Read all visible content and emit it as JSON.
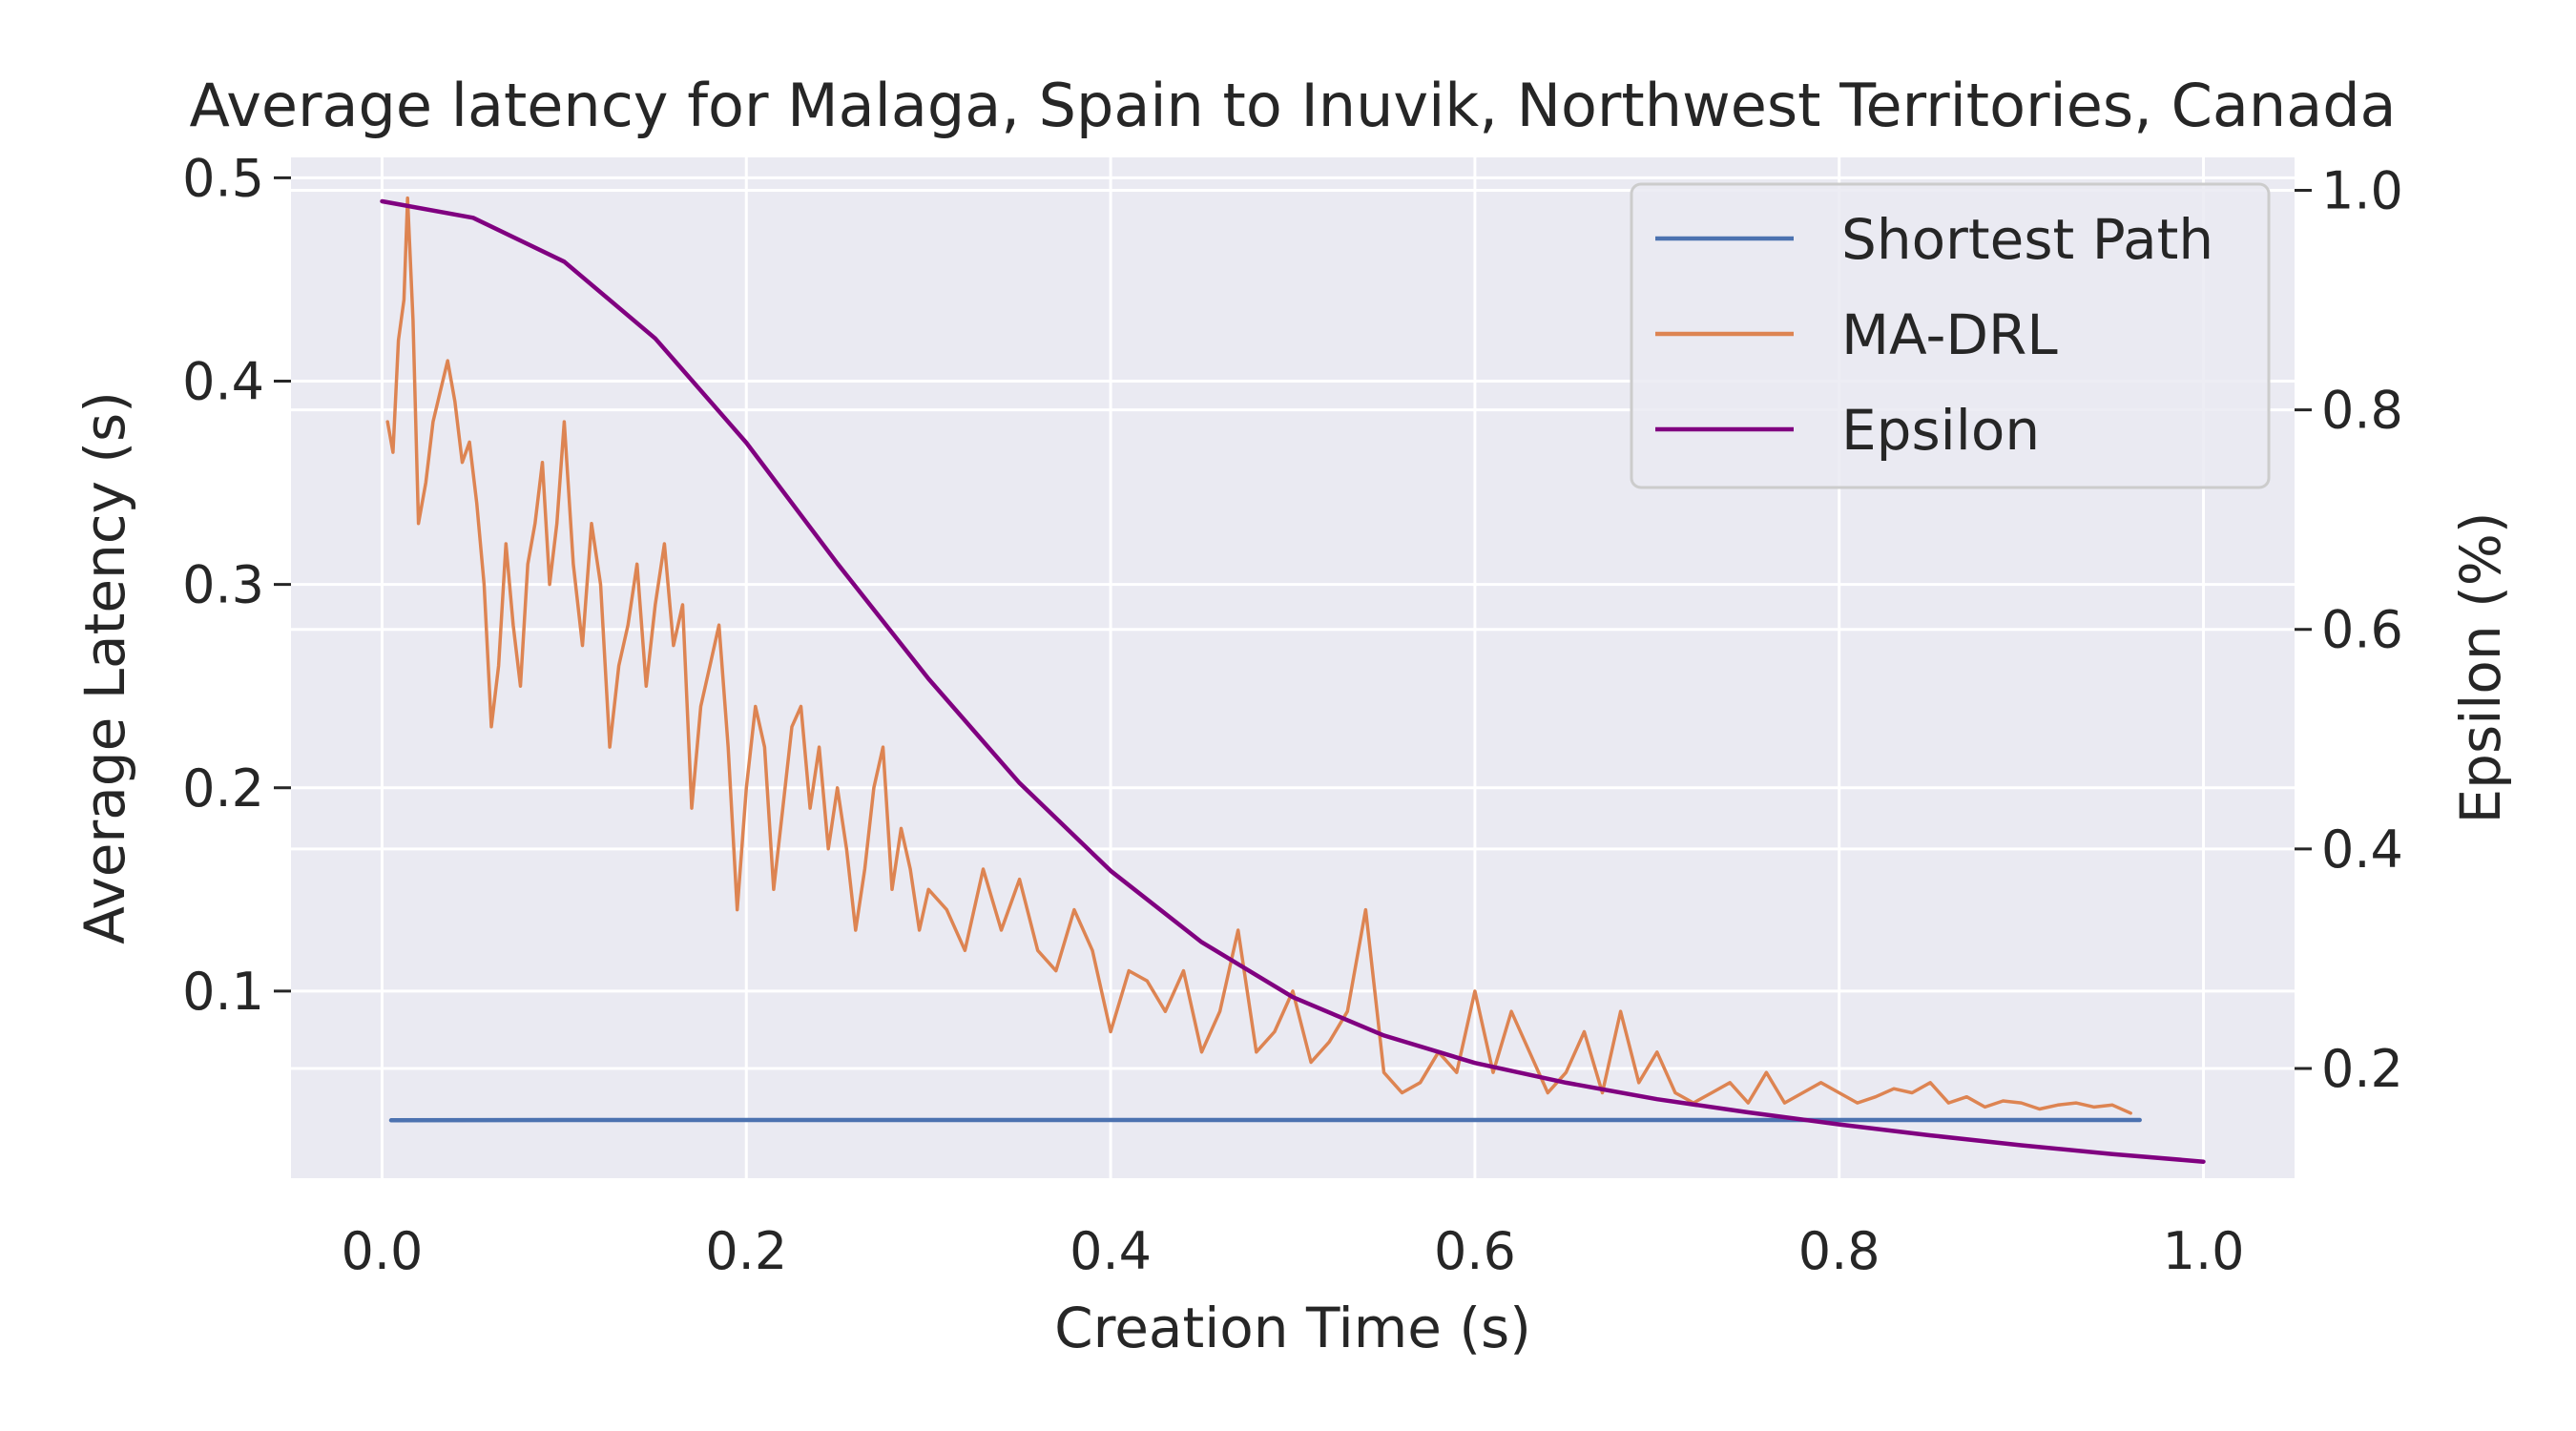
{
  "chart_data": {
    "type": "line",
    "title": "Average latency for Malaga, Spain to Inuvik, Northwest Territories, Canada",
    "xlabel": "Creation Time (s)",
    "ylabel": "Average Latency (s)",
    "y2label": "Epsilon (%)",
    "xlim": [
      -0.05,
      1.05
    ],
    "ylim": [
      0.008,
      0.51
    ],
    "y2lim": [
      0.1,
      1.03
    ],
    "xticks": [
      0.0,
      0.2,
      0.4,
      0.6,
      0.8,
      1.0
    ],
    "xtick_labels": [
      "0.0",
      "0.2",
      "0.4",
      "0.6",
      "0.8",
      "1.0"
    ],
    "yticks": [
      0.1,
      0.2,
      0.3,
      0.4,
      0.5
    ],
    "ytick_labels": [
      "0.1",
      "0.2",
      "0.3",
      "0.4",
      "0.5"
    ],
    "y2ticks": [
      0.2,
      0.4,
      0.6,
      0.8,
      1.0
    ],
    "y2tick_labels": [
      "0.2",
      "0.4",
      "0.6",
      "0.8",
      "1.0"
    ],
    "grid": true,
    "legend_position": "top-right",
    "colors": {
      "background": "#eaeaf2",
      "grid": "#ffffff"
    },
    "series": [
      {
        "name": "Shortest Path",
        "axis": "left",
        "color": "#4c72b0",
        "x": [
          0.005,
          0.1,
          0.2,
          0.3,
          0.4,
          0.5,
          0.6,
          0.7,
          0.8,
          0.9,
          0.965
        ],
        "y": [
          0.0365,
          0.0366,
          0.0366,
          0.0366,
          0.0366,
          0.0366,
          0.0366,
          0.0366,
          0.0366,
          0.0366,
          0.0366
        ]
      },
      {
        "name": "MA-DRL",
        "axis": "left",
        "color": "#dd8452",
        "x": [
          0.003,
          0.006,
          0.009,
          0.012,
          0.014,
          0.017,
          0.02,
          0.024,
          0.028,
          0.032,
          0.036,
          0.04,
          0.044,
          0.048,
          0.052,
          0.056,
          0.06,
          0.064,
          0.068,
          0.072,
          0.076,
          0.08,
          0.084,
          0.088,
          0.092,
          0.096,
          0.1,
          0.105,
          0.11,
          0.115,
          0.12,
          0.125,
          0.13,
          0.135,
          0.14,
          0.145,
          0.15,
          0.155,
          0.16,
          0.165,
          0.17,
          0.175,
          0.18,
          0.185,
          0.19,
          0.195,
          0.2,
          0.205,
          0.21,
          0.215,
          0.22,
          0.225,
          0.23,
          0.235,
          0.24,
          0.245,
          0.25,
          0.255,
          0.26,
          0.265,
          0.27,
          0.275,
          0.28,
          0.285,
          0.29,
          0.295,
          0.3,
          0.31,
          0.32,
          0.33,
          0.34,
          0.35,
          0.36,
          0.37,
          0.38,
          0.39,
          0.4,
          0.41,
          0.42,
          0.43,
          0.44,
          0.45,
          0.46,
          0.47,
          0.48,
          0.49,
          0.5,
          0.51,
          0.52,
          0.53,
          0.54,
          0.55,
          0.56,
          0.57,
          0.58,
          0.59,
          0.6,
          0.61,
          0.62,
          0.63,
          0.64,
          0.65,
          0.66,
          0.67,
          0.68,
          0.69,
          0.7,
          0.71,
          0.72,
          0.73,
          0.74,
          0.75,
          0.76,
          0.77,
          0.78,
          0.79,
          0.8,
          0.81,
          0.82,
          0.83,
          0.84,
          0.85,
          0.86,
          0.87,
          0.88,
          0.89,
          0.9,
          0.91,
          0.92,
          0.93,
          0.94,
          0.95,
          0.96
        ],
        "y": [
          0.38,
          0.365,
          0.42,
          0.44,
          0.49,
          0.43,
          0.33,
          0.35,
          0.38,
          0.395,
          0.41,
          0.39,
          0.36,
          0.37,
          0.34,
          0.3,
          0.23,
          0.26,
          0.32,
          0.28,
          0.25,
          0.31,
          0.33,
          0.36,
          0.3,
          0.33,
          0.38,
          0.31,
          0.27,
          0.33,
          0.3,
          0.22,
          0.26,
          0.28,
          0.31,
          0.25,
          0.29,
          0.32,
          0.27,
          0.29,
          0.19,
          0.24,
          0.26,
          0.28,
          0.22,
          0.14,
          0.2,
          0.24,
          0.22,
          0.15,
          0.19,
          0.23,
          0.24,
          0.19,
          0.22,
          0.17,
          0.2,
          0.17,
          0.13,
          0.16,
          0.2,
          0.22,
          0.15,
          0.18,
          0.16,
          0.13,
          0.15,
          0.14,
          0.12,
          0.16,
          0.13,
          0.155,
          0.12,
          0.11,
          0.14,
          0.12,
          0.08,
          0.11,
          0.105,
          0.09,
          0.11,
          0.07,
          0.09,
          0.13,
          0.07,
          0.08,
          0.1,
          0.065,
          0.075,
          0.09,
          0.14,
          0.06,
          0.05,
          0.055,
          0.07,
          0.06,
          0.1,
          0.06,
          0.09,
          0.07,
          0.05,
          0.06,
          0.08,
          0.05,
          0.09,
          0.055,
          0.07,
          0.05,
          0.045,
          0.05,
          0.055,
          0.045,
          0.06,
          0.045,
          0.05,
          0.055,
          0.05,
          0.045,
          0.048,
          0.052,
          0.05,
          0.055,
          0.045,
          0.048,
          0.043,
          0.046,
          0.045,
          0.042,
          0.044,
          0.045,
          0.043,
          0.044,
          0.04
        ]
      },
      {
        "name": "Epsilon",
        "axis": "right",
        "color": "#800080",
        "x": [
          0.0,
          0.05,
          0.1,
          0.15,
          0.2,
          0.25,
          0.3,
          0.35,
          0.4,
          0.45,
          0.5,
          0.55,
          0.6,
          0.65,
          0.7,
          0.75,
          0.8,
          0.85,
          0.9,
          0.95,
          1.0
        ],
        "y": [
          0.99,
          0.975,
          0.935,
          0.865,
          0.77,
          0.66,
          0.555,
          0.46,
          0.38,
          0.315,
          0.265,
          0.23,
          0.205,
          0.187,
          0.172,
          0.16,
          0.149,
          0.139,
          0.13,
          0.122,
          0.115
        ]
      }
    ]
  }
}
